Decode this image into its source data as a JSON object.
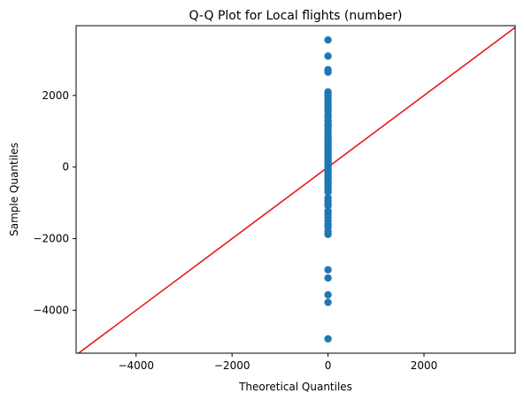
{
  "chart_data": {
    "type": "scatter",
    "title": "Q-Q Plot for Local flights (number)",
    "xlabel": "Theoretical Quantiles",
    "ylabel": "Sample Quantiles",
    "xlim": [
      -5250,
      3900
    ],
    "ylim": [
      -5200,
      3950
    ],
    "xticks": [
      -4000,
      -2000,
      0,
      2000
    ],
    "yticks": [
      -4000,
      -2000,
      0,
      2000
    ],
    "xtick_labels": [
      "−4000",
      "−2000",
      "0",
      "2000"
    ],
    "ytick_labels": [
      "−4000",
      "−2000",
      "0",
      "2000"
    ],
    "grid": false,
    "legend": "none",
    "series": [
      {
        "marker_color": "#1f77b4",
        "x": [
          0,
          0,
          0,
          0,
          0,
          0,
          0,
          0,
          0,
          0,
          0,
          0,
          0,
          0,
          0,
          0,
          0,
          0,
          0,
          0,
          0,
          0,
          0,
          0,
          0,
          0,
          0,
          0,
          0,
          0,
          0,
          0,
          0,
          0,
          0,
          0,
          0,
          0,
          0,
          0,
          0,
          0,
          0,
          0,
          0,
          0,
          0,
          0,
          0,
          0,
          0,
          0,
          0,
          0,
          0,
          0,
          0,
          0,
          0,
          0,
          0,
          0,
          0,
          0,
          0,
          0,
          0,
          0,
          0,
          0
        ],
        "y": [
          -4800,
          -3780,
          -3570,
          -3100,
          -2870,
          -1880,
          -1800,
          -1680,
          -1600,
          -1500,
          -1400,
          -1320,
          -1230,
          -1080,
          -1010,
          -930,
          -860,
          -700,
          -620,
          -540,
          -470,
          -380,
          -300,
          -230,
          -150,
          -70,
          0,
          30,
          90,
          140,
          230,
          300,
          360,
          420,
          480,
          540,
          610,
          680,
          760,
          820,
          900,
          980,
          1050,
          1120,
          1200,
          1290,
          1380,
          1450,
          1560,
          1640,
          1720,
          1800,
          1890,
          1960,
          2040,
          2100,
          2650,
          2720,
          3100,
          3550,
          -560,
          -430,
          -260,
          -110,
          50,
          180,
          460,
          590,
          720,
          1170
        ]
      }
    ],
    "reference_line": {
      "color": "#e8191a",
      "x": [
        -5250,
        3900
      ],
      "y": [
        -5250,
        3900
      ]
    }
  }
}
